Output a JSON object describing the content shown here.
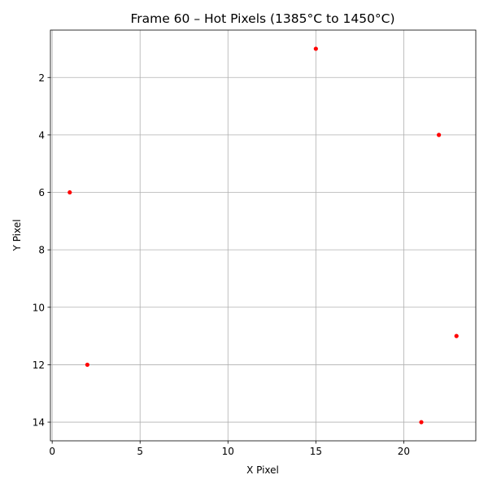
{
  "chart_data": {
    "type": "scatter",
    "title": "Frame 60 – Hot Pixels (1385°C to 1450°C)",
    "xlabel": "X Pixel",
    "ylabel": "Y Pixel",
    "xlim": [
      -0.1,
      24.1
    ],
    "ylim": [
      14.65,
      0.35
    ],
    "y_inverted": true,
    "xticks": [
      0,
      5,
      10,
      15,
      20
    ],
    "yticks": [
      2,
      4,
      6,
      8,
      10,
      12,
      14
    ],
    "grid": true,
    "marker_color": "#ff0000",
    "points": [
      {
        "x": 15,
        "y": 1
      },
      {
        "x": 22,
        "y": 4
      },
      {
        "x": 1,
        "y": 6
      },
      {
        "x": 23,
        "y": 11
      },
      {
        "x": 2,
        "y": 12
      },
      {
        "x": 21,
        "y": 14
      }
    ]
  }
}
